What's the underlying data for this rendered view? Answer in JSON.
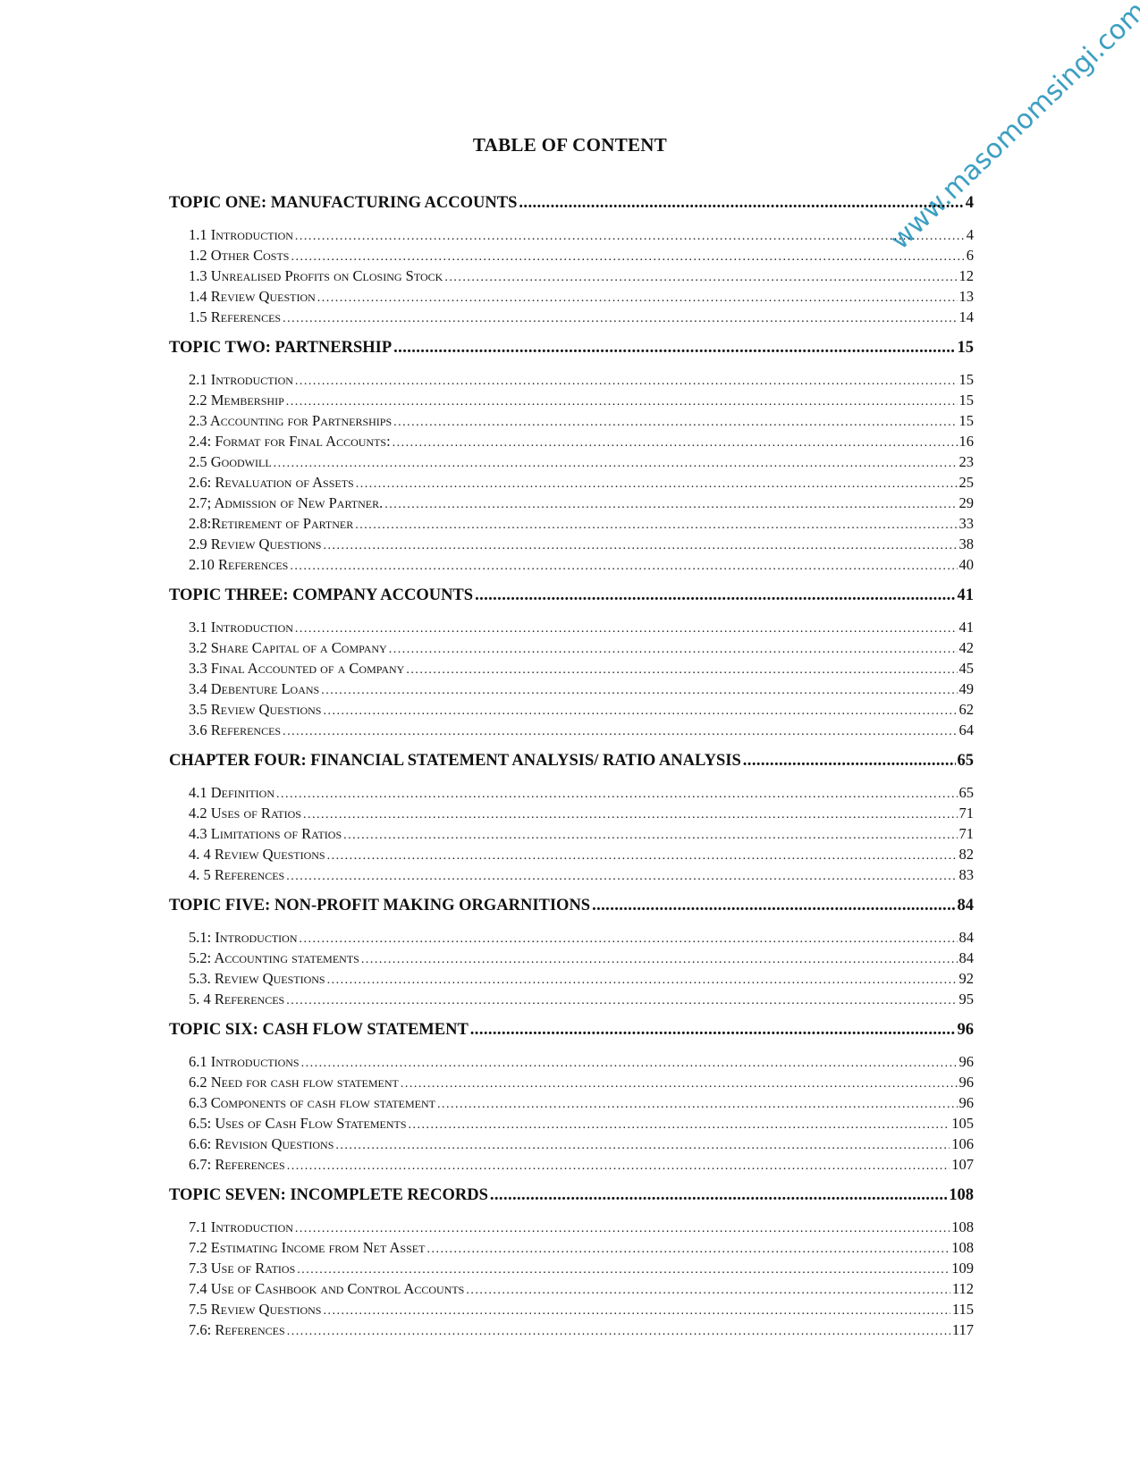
{
  "title": "TABLE OF CONTENT",
  "watermark": "www.masomomsingi.com",
  "watermark_color": "#3c9fc2",
  "sections": [
    {
      "heading": "TOPIC ONE: MANUFACTURING ACCOUNTS",
      "page": "4",
      "entries": [
        {
          "label": "1.1 Introduction",
          "page": "4"
        },
        {
          "label": "1.2 Other Costs",
          "page": "6"
        },
        {
          "label": "1.3 Unrealised Profits on Closing Stock",
          "page": "12"
        },
        {
          "label": "1.4 Review Question",
          "page": "13"
        },
        {
          "label": "1.5 References",
          "page": "14"
        }
      ]
    },
    {
      "heading": "TOPIC TWO: PARTNERSHIP",
      "page": "15",
      "entries": [
        {
          "label": "2.1 Introduction",
          "page": "15"
        },
        {
          "label": "2.2 Membership",
          "page": "15"
        },
        {
          "label": "2.3 Accounting for Partnerships",
          "page": "15"
        },
        {
          "label": "2.4: Format for Final Accounts:",
          "page": "16"
        },
        {
          "label": "2.5 Goodwill",
          "page": "23"
        },
        {
          "label": "2.6: Revaluation of Assets",
          "page": "25"
        },
        {
          "label": "2.7; Admission of New Partner.",
          "page": "29"
        },
        {
          "label": "2.8:Retirement of Partner",
          "page": "33"
        },
        {
          "label": "2.9 Review Questions",
          "page": "38"
        },
        {
          "label": "2.10 References",
          "page": "40"
        }
      ]
    },
    {
      "heading": "TOPIC THREE: COMPANY ACCOUNTS",
      "page": "41",
      "entries": [
        {
          "label": "3.1 Introduction",
          "page": "41"
        },
        {
          "label": "3.2 Share Capital of a Company",
          "page": "42"
        },
        {
          "label": "3.3 Final Accounted of a Company",
          "page": "45"
        },
        {
          "label": "3.4 Debenture Loans",
          "page": "49"
        },
        {
          "label": "3.5 Review Questions",
          "page": "62"
        },
        {
          "label": "3.6 References",
          "page": "64"
        }
      ]
    },
    {
      "heading": "CHAPTER FOUR: FINANCIAL STATEMENT ANALYSIS/ RATIO ANALYSIS",
      "page": "65",
      "entries": [
        {
          "label": "4.1 Definition",
          "page": "65"
        },
        {
          "label": "4.2 Uses of Ratios",
          "page": "71"
        },
        {
          "label": "4.3 Limitations of Ratios",
          "page": "71"
        },
        {
          "label": "4. 4 Review Questions",
          "page": "82"
        },
        {
          "label": "4. 5 References",
          "page": "83"
        }
      ]
    },
    {
      "heading": "TOPIC FIVE: NON-PROFIT MAKING ORGARNITIONS",
      "page": "84",
      "entries": [
        {
          "label": "5.1: Introduction",
          "page": "84"
        },
        {
          "label": "5.2: Accounting statements",
          "page": "84"
        },
        {
          "label": "5.3. Review Questions",
          "page": "92"
        },
        {
          "label": "5. 4 References",
          "page": "95"
        }
      ]
    },
    {
      "heading": "TOPIC SIX: CASH FLOW STATEMENT",
      "page": "96",
      "entries": [
        {
          "label": "6.1 Introductions",
          "page": "96"
        },
        {
          "label": "6.2 Need for cash flow statement",
          "page": "96"
        },
        {
          "label": "6.3 Components of cash flow statement",
          "page": "96"
        },
        {
          "label": "6.5: Uses of Cash Flow Statements",
          "page": "105"
        },
        {
          "label": "6.6: Revision Questions",
          "page": "106"
        },
        {
          "label": "6.7:  References",
          "page": "107"
        }
      ]
    },
    {
      "heading": "TOPIC SEVEN: INCOMPLETE RECORDS",
      "page": "108",
      "entries": [
        {
          "label": "7.1 Introduction",
          "page": "108"
        },
        {
          "label": "7.2 Estimating Income from Net Asset",
          "page": "108"
        },
        {
          "label": "7.3 Use of Ratios",
          "page": "109"
        },
        {
          "label": "7.4 Use of Cashbook and Control Accounts",
          "page": "112"
        },
        {
          "label": "7.5 Review Questions",
          "page": "115"
        },
        {
          "label": "7.6:  References",
          "page": "117"
        }
      ]
    }
  ]
}
